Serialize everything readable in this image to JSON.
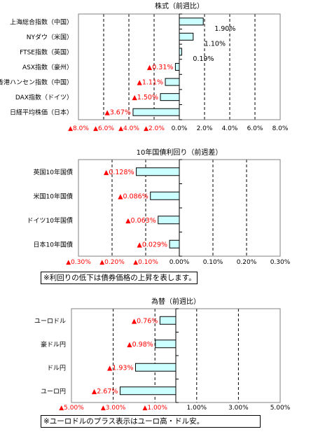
{
  "chart_data": [
    {
      "type": "bar",
      "orientation": "horizontal",
      "title": "株式（前週比）",
      "categories": [
        "上海総合指数（中国）",
        "NYダウ（米国）",
        "FTSE指数（英国）",
        "ASX指数（豪州）",
        "香港ハンセン指数（中国）",
        "DAX指数（ドイツ）",
        "日経平均株価（日本）"
      ],
      "values": [
        1.9,
        1.1,
        0.19,
        -0.31,
        -1.11,
        -1.5,
        -3.67
      ],
      "value_labels": [
        "1.90%",
        "1.10%",
        "0.19%",
        "▲0.31%",
        "▲1.11%",
        "▲1.50%",
        "▲3.67%"
      ],
      "xlim": [
        -8,
        8
      ],
      "ticks": [
        -8,
        -6,
        -4,
        -2,
        0,
        2,
        4,
        6,
        8
      ],
      "tick_labels": [
        "▲8.0%",
        "▲6.0%",
        "▲4.0%",
        "▲2.0%",
        "0.0%",
        "2.0%",
        "4.0%",
        "6.0%",
        "8.0%"
      ],
      "grid": "dashed-vertical",
      "bar_color": "#ccffff",
      "negative_label_color": "#ff0000",
      "note": ""
    },
    {
      "type": "bar",
      "orientation": "horizontal",
      "title": "10年国債利回り（前週差）",
      "categories": [
        "英国10年国債",
        "米国10年国債",
        "ドイツ10年国債",
        "日本10年国債"
      ],
      "values": [
        -0.128,
        -0.086,
        -0.063,
        -0.029
      ],
      "value_labels": [
        "▲0.128%",
        "▲0.086%",
        "▲0.063%",
        "▲0.029%"
      ],
      "xlim": [
        -0.3,
        0.3
      ],
      "ticks": [
        -0.3,
        -0.2,
        -0.1,
        0,
        0.1,
        0.2,
        0.3
      ],
      "tick_labels": [
        "▲0.30%",
        "▲0.20%",
        "▲0.10%",
        "0.00%",
        "0.10%",
        "0.20%",
        "0.30%"
      ],
      "grid": "dashed-vertical",
      "bar_color": "#ccffff",
      "negative_label_color": "#ff0000",
      "note": "※利回りの低下は債券価格の上昇を表します。"
    },
    {
      "type": "bar",
      "orientation": "horizontal",
      "title": "為替（前週比）",
      "categories": [
        "ユーロドル",
        "豪ドル円",
        "ドル円",
        "ユーロ円"
      ],
      "values": [
        -0.76,
        -0.98,
        -1.93,
        -2.67
      ],
      "value_labels": [
        "▲0.76%",
        "▲0.98%",
        "▲1.93%",
        "▲2.67%"
      ],
      "xlim": [
        -5,
        5
      ],
      "ticks": [
        -5,
        -3,
        -1,
        1,
        3,
        5
      ],
      "tick_labels": [
        "▲5.00%",
        "▲3.00%",
        "▲1.00%",
        "1.00%",
        "3.00%",
        "5.00%"
      ],
      "grid": "dashed-vertical",
      "bar_color": "#ccffff",
      "negative_label_color": "#ff0000",
      "note": "※ユーロドルのプラス表示はユーロ高・ドル安。"
    }
  ]
}
